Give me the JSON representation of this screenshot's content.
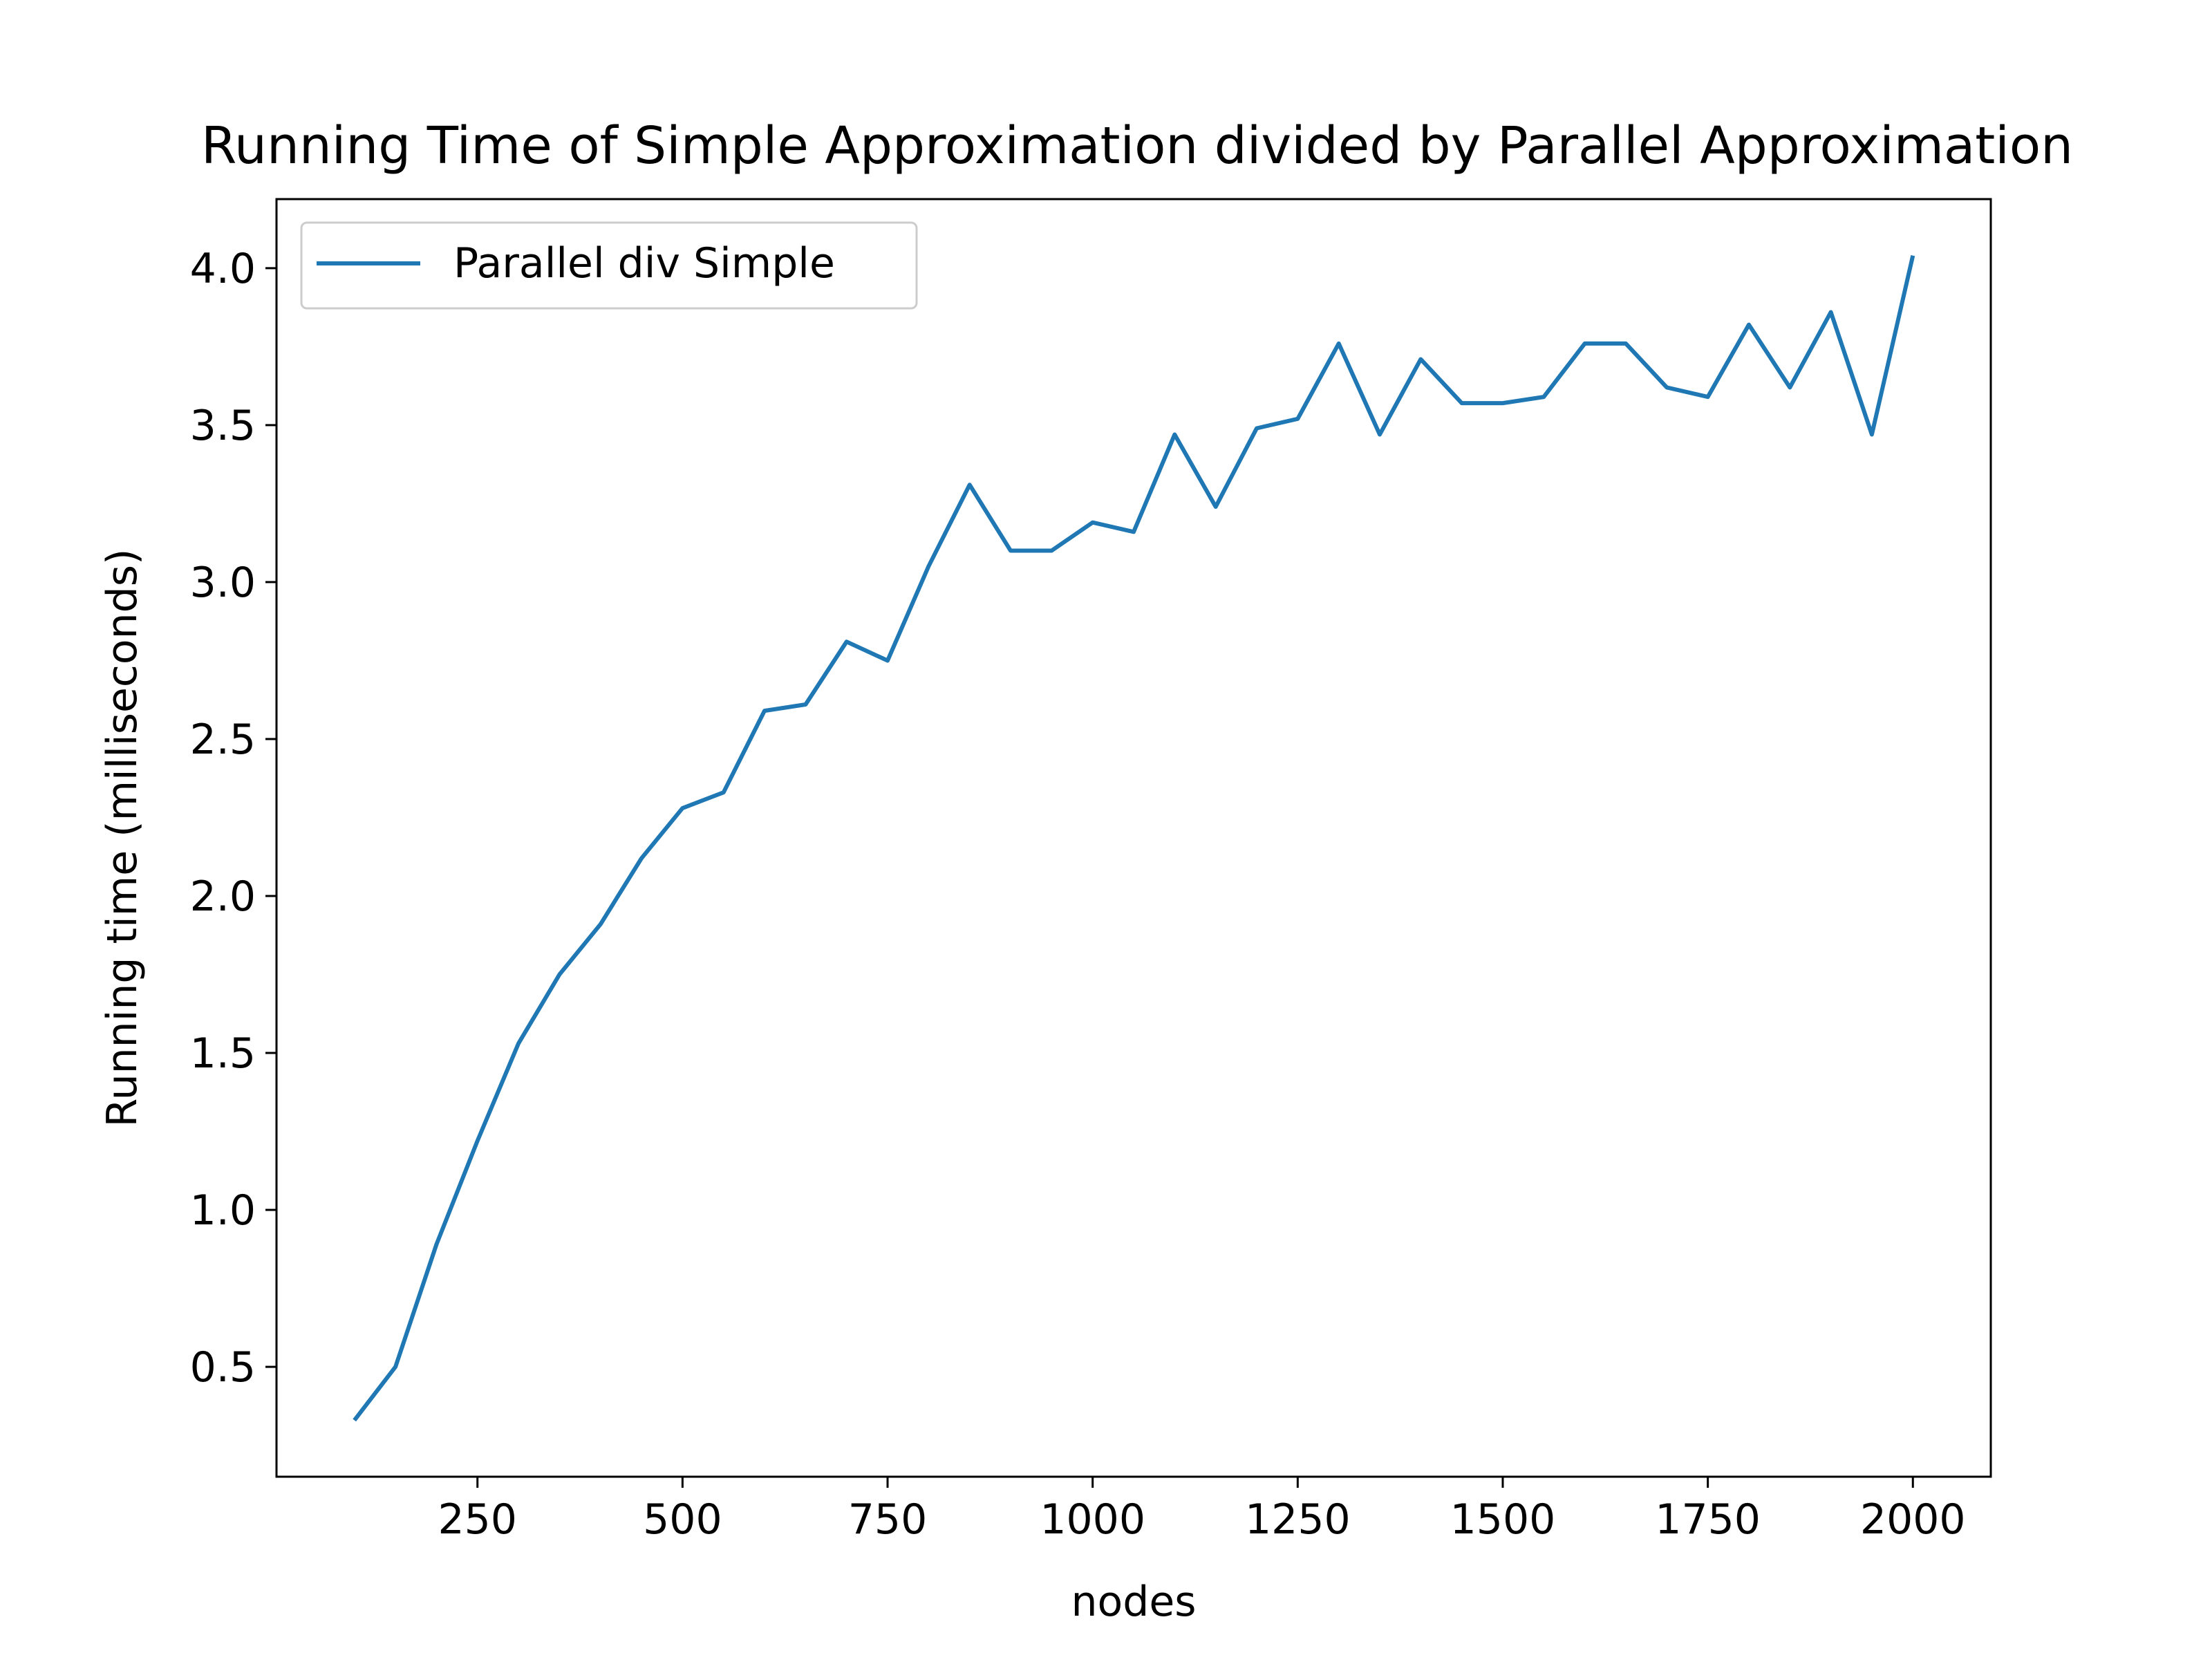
{
  "chart_data": {
    "type": "line",
    "title": "Running Time of Simple Approximation divided by Parallel Approximation",
    "xlabel": "nodes",
    "ylabel": "Running time (milliseconds)",
    "xlim": [
      5,
      2095
    ],
    "ylim": [
      0.15,
      4.22
    ],
    "xticks": [
      250,
      500,
      750,
      1000,
      1250,
      1500,
      1750,
      2000
    ],
    "yticks": [
      0.5,
      1.0,
      1.5,
      2.0,
      2.5,
      3.0,
      3.5,
      4.0
    ],
    "grid": false,
    "legend_position": "upper-left",
    "series": [
      {
        "name": "Parallel div Simple",
        "color": "#1f77b4",
        "x": [
          100,
          150,
          200,
          250,
          300,
          350,
          400,
          450,
          500,
          550,
          600,
          650,
          700,
          750,
          800,
          850,
          900,
          950,
          1000,
          1050,
          1100,
          1150,
          1200,
          1250,
          1300,
          1350,
          1400,
          1450,
          1500,
          1550,
          1600,
          1650,
          1700,
          1750,
          1800,
          1850,
          1900,
          1950,
          2000
        ],
        "y": [
          0.33,
          0.5,
          0.89,
          1.22,
          1.53,
          1.75,
          1.91,
          2.12,
          2.28,
          2.33,
          2.59,
          2.61,
          2.81,
          2.75,
          3.05,
          3.31,
          3.1,
          3.1,
          3.19,
          3.16,
          3.47,
          3.24,
          3.49,
          3.52,
          3.76,
          3.47,
          3.71,
          3.57,
          3.57,
          3.59,
          3.76,
          3.76,
          3.62,
          3.59,
          3.82,
          3.62,
          3.86,
          3.47,
          4.04
        ]
      }
    ]
  }
}
